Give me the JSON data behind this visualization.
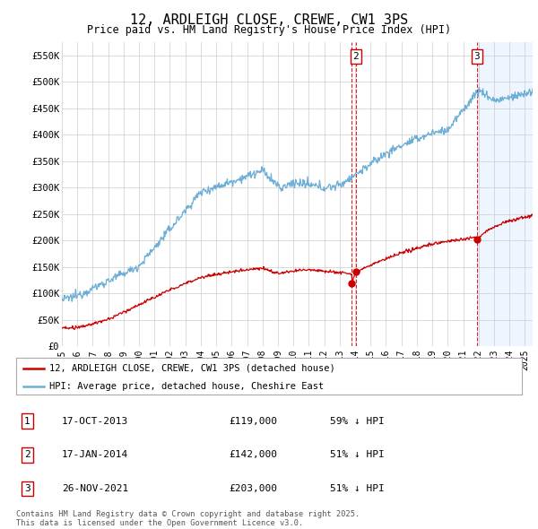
{
  "title": "12, ARDLEIGH CLOSE, CREWE, CW1 3PS",
  "subtitle": "Price paid vs. HM Land Registry's House Price Index (HPI)",
  "ylabel_ticks": [
    "£0",
    "£50K",
    "£100K",
    "£150K",
    "£200K",
    "£250K",
    "£300K",
    "£350K",
    "£400K",
    "£450K",
    "£500K",
    "£550K"
  ],
  "ytick_values": [
    0,
    50000,
    100000,
    150000,
    200000,
    250000,
    300000,
    350000,
    400000,
    450000,
    500000,
    550000
  ],
  "ylim": [
    0,
    575000
  ],
  "hpi_color": "#6baed6",
  "price_color": "#cc0000",
  "vline_color": "#cc0000",
  "background_color": "#ffffff",
  "grid_color": "#cccccc",
  "shade_color": "#ddeeff",
  "legend_entries": [
    "12, ARDLEIGH CLOSE, CREWE, CW1 3PS (detached house)",
    "HPI: Average price, detached house, Cheshire East"
  ],
  "transactions": [
    {
      "label": "1",
      "date": "17-OCT-2013",
      "price": 119000,
      "pct": "59% ↓ HPI",
      "x_year": 2013.79
    },
    {
      "label": "2",
      "date": "17-JAN-2014",
      "price": 142000,
      "pct": "51% ↓ HPI",
      "x_year": 2014.04
    },
    {
      "label": "3",
      "date": "26-NOV-2021",
      "price": 203000,
      "pct": "51% ↓ HPI",
      "x_year": 2021.9
    }
  ],
  "footer": "Contains HM Land Registry data © Crown copyright and database right 2025.\nThis data is licensed under the Open Government Licence v3.0.",
  "xlim_start": 1995.0,
  "xlim_end": 2025.5
}
